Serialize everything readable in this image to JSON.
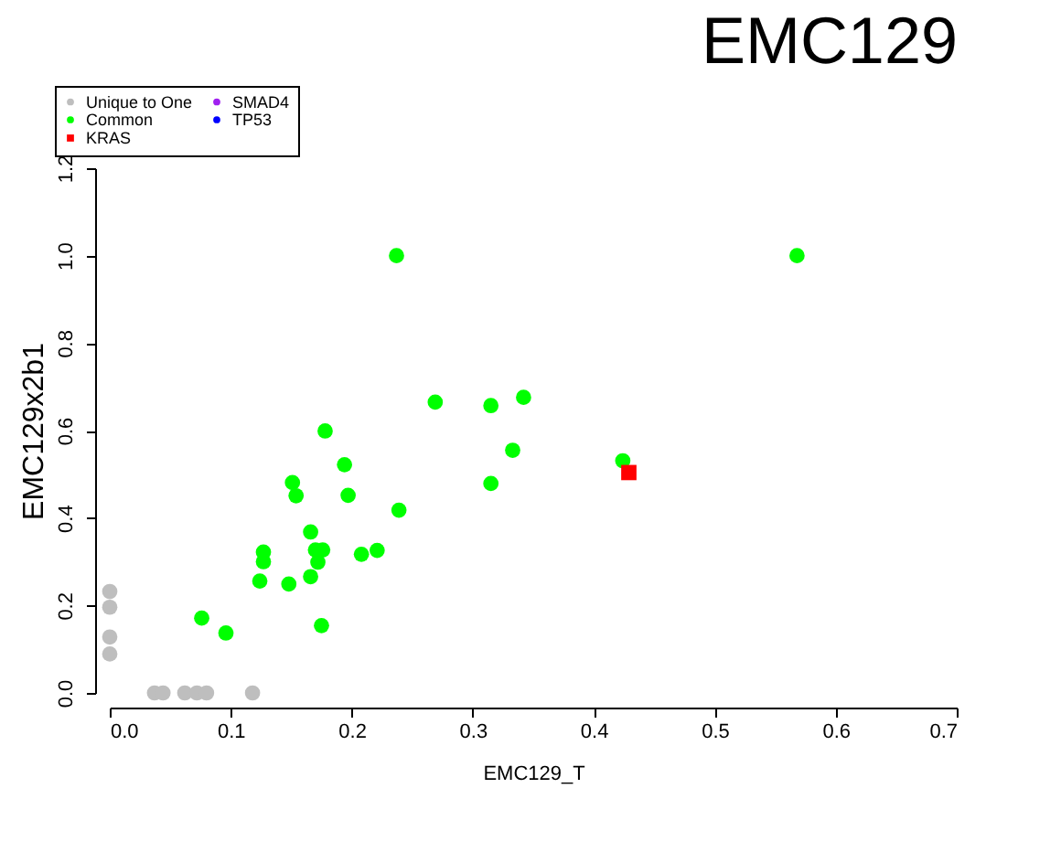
{
  "chart_data": {
    "type": "scatter",
    "title": "EMC129",
    "xlabel": "EMC129_T",
    "ylabel": "EMC129x2b1",
    "xlim": [
      0,
      0.7
    ],
    "xticks": [
      {
        "value": 0,
        "label": "0.0"
      },
      0.1,
      0.2,
      0.3,
      0.4,
      0.5,
      0.6,
      0.7
    ],
    "ylim": [
      0,
      1.2
    ],
    "yticks": [
      {
        "value": 0,
        "label": "0.0"
      },
      0.2,
      0.4,
      0.6,
      0.8,
      {
        "value": 1,
        "label": "1.0"
      },
      1.2
    ],
    "grid": false,
    "legend": "top left",
    "series": [
      {
        "name": "Unique to One",
        "color": "#bebebe",
        "marker": "circle",
        "x": [
          0,
          0,
          0,
          0,
          0.037,
          0.044,
          0.062,
          0.072,
          0.08,
          0.118
        ],
        "values": [
          0.232,
          0.196,
          0.128,
          0.089,
          0,
          0,
          0,
          0,
          0,
          0
        ]
      },
      {
        "name": "Common",
        "color": "#00ff00",
        "marker": "circle",
        "x": [
          0.237,
          0.269,
          0.315,
          0.342,
          0.333,
          0.315,
          0.178,
          0.194,
          0.151,
          0.154,
          0.197,
          0.239,
          0.166,
          0.17,
          0.176,
          0.172,
          0.166,
          0.208,
          0.221,
          0.127,
          0.127,
          0.124,
          0.148,
          0.076,
          0.096,
          0.175,
          0.568,
          0.424
        ],
        "values": [
          1.0,
          0.665,
          0.657,
          0.676,
          0.555,
          0.479,
          0.599,
          0.522,
          0.481,
          0.451,
          0.452,
          0.418,
          0.368,
          0.327,
          0.327,
          0.299,
          0.266,
          0.317,
          0.326,
          0.322,
          0.3,
          0.256,
          0.249,
          0.171,
          0.137,
          0.154,
          1.0,
          0.531
        ]
      },
      {
        "name": "KRAS",
        "color": "#ff0000",
        "marker": "square",
        "x": [
          0.429
        ],
        "values": [
          0.504
        ]
      },
      {
        "name": "SMAD4",
        "color": "#a020f0"
      },
      {
        "name": "TP53",
        "color": "#0000ff"
      }
    ]
  }
}
